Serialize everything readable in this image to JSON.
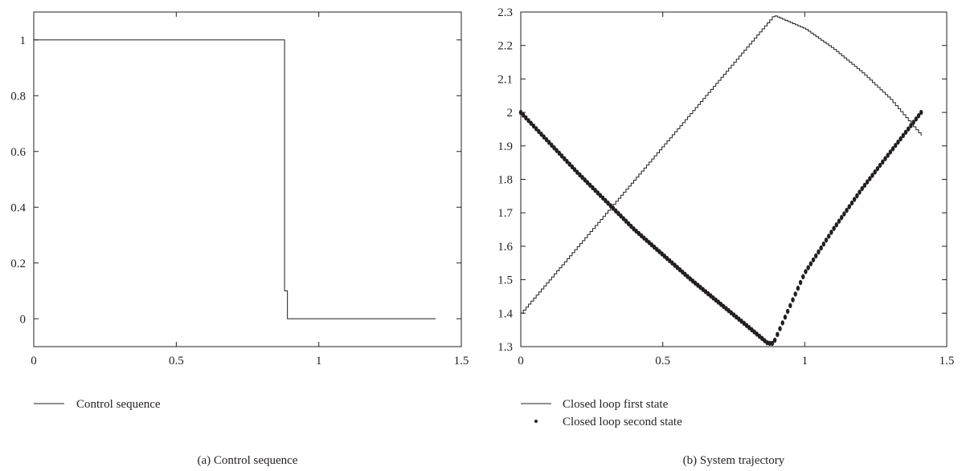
{
  "chart_data": [
    {
      "type": "line",
      "caption": "(a)  Control sequence",
      "xlim": [
        0,
        1.5
      ],
      "ylim": [
        -0.1,
        1.1
      ],
      "x_ticks": [
        0,
        0.5,
        1,
        1.5
      ],
      "x_tick_labels": [
        "0",
        "0.5",
        "1",
        "1.5"
      ],
      "y_ticks": [
        0,
        0.2,
        0.4,
        0.6,
        0.8,
        1
      ],
      "y_tick_labels": [
        "0",
        "0.2",
        "0.4",
        "0.6",
        "0.8",
        "1"
      ],
      "legend": [
        {
          "label": "Control sequence",
          "marker": "line"
        }
      ],
      "legend_position": "below",
      "series": [
        {
          "name": "Control sequence",
          "style": "line",
          "color": "#231f20",
          "x": [
            0,
            0.88,
            0.88,
            0.89,
            0.89,
            0.9,
            0.9,
            1.41
          ],
          "y": [
            1,
            1,
            0.1,
            0.1,
            0.0,
            0.0,
            0.0,
            0.0
          ]
        }
      ]
    },
    {
      "type": "line",
      "caption": "(b)  System trajectory",
      "xlim": [
        0,
        1.5
      ],
      "ylim": [
        1.3,
        2.3
      ],
      "x_ticks": [
        0,
        0.5,
        1,
        1.5
      ],
      "x_tick_labels": [
        "0",
        "0.5",
        "1",
        "1.5"
      ],
      "y_ticks": [
        1.3,
        1.4,
        1.5,
        1.6,
        1.7,
        1.8,
        1.9,
        2,
        2.1,
        2.2,
        2.3
      ],
      "y_tick_labels": [
        "1.3",
        "1.4",
        "1.5",
        "1.6",
        "1.7",
        "1.8",
        "1.9",
        "2",
        "2.1",
        "2.2",
        "2.3"
      ],
      "legend": [
        {
          "label": "Closed loop first state",
          "marker": "line"
        },
        {
          "label": "Closed loop second state",
          "marker": "dot"
        }
      ],
      "legend_position": "below",
      "series": [
        {
          "name": "Closed loop first state",
          "style": "stairs",
          "color": "#231f20",
          "x": [
            0,
            0.89,
            1.0,
            1.1,
            1.2,
            1.3,
            1.41
          ],
          "y": [
            1.4,
            2.29,
            2.25,
            2.19,
            2.12,
            2.04,
            1.93
          ]
        },
        {
          "name": "Closed loop second state",
          "style": "dots",
          "color": "#231f20",
          "x": [
            0,
            0.2,
            0.4,
            0.6,
            0.8,
            0.87,
            0.89,
            1.0,
            1.1,
            1.2,
            1.3,
            1.41
          ],
          "y": [
            2.0,
            1.82,
            1.65,
            1.5,
            1.36,
            1.31,
            1.31,
            1.52,
            1.65,
            1.77,
            1.88,
            2.0
          ]
        }
      ]
    }
  ]
}
